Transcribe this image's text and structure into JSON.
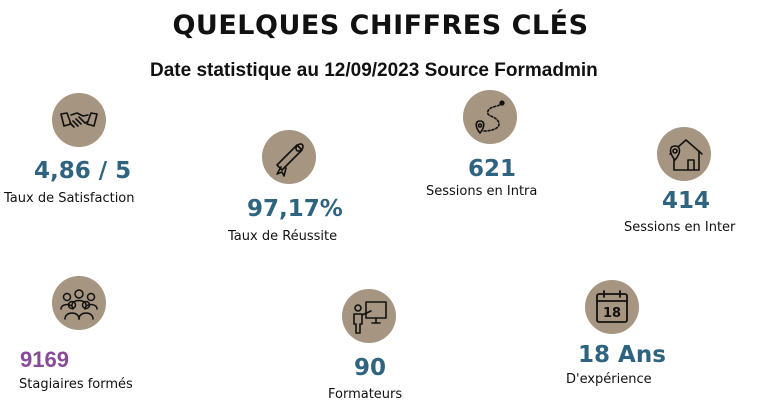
{
  "header": {
    "title": "QUELQUES CHIFFRES CLÉS",
    "subtitle": "Date statistique au 12/09/2023 Source Formadmin"
  },
  "colors": {
    "icon_bg": "#a69580",
    "value": "#2f6480",
    "value_highlight": "#8a4a9a"
  },
  "stats": {
    "satisfaction": {
      "value": "4,86 / 5",
      "label": "Taux de Satisfaction",
      "icon": "handshake-icon"
    },
    "reussite": {
      "value": "97,17%",
      "label": "Taux de Réussite",
      "icon": "diploma-icon"
    },
    "intra": {
      "value": "621",
      "label": "Sessions en Intra",
      "icon": "route-pin-icon"
    },
    "inter": {
      "value": "414",
      "label": "Sessions en Inter",
      "icon": "house-pin-icon"
    },
    "stagiaires": {
      "value": "9169",
      "label": "Stagiaires formés",
      "icon": "group-icon"
    },
    "formateurs": {
      "value": "90",
      "label": "Formateurs",
      "icon": "trainer-icon"
    },
    "experience": {
      "value": "18 Ans",
      "label": "D'expérience",
      "icon": "calendar-icon",
      "calendar_day": "18"
    }
  }
}
